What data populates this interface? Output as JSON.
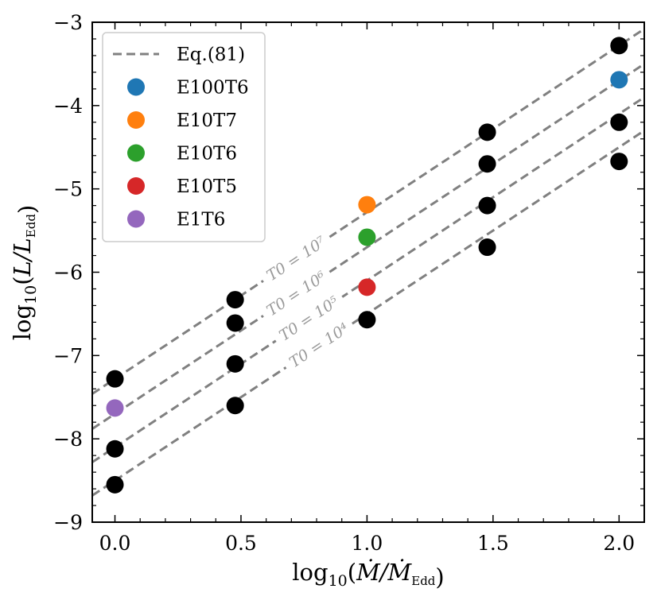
{
  "chart_data": {
    "type": "scatter",
    "xlabel": "log10(Ṁ/ṀEdd)",
    "ylabel": "log10(L/LEdd)",
    "xlim": [
      -0.09,
      2.1
    ],
    "ylim": [
      -9,
      -3
    ],
    "xticks": [
      0.0,
      0.5,
      1.0,
      1.5,
      2.0
    ],
    "xtick_labels": [
      "0.0",
      "0.5",
      "1.0",
      "1.5",
      "2.0"
    ],
    "yticks": [
      -9,
      -8,
      -7,
      -6,
      -5,
      -4,
      -3
    ],
    "ytick_labels": [
      "−9",
      "−8",
      "−7",
      "−6",
      "−5",
      "−4",
      "−3"
    ],
    "grid": false,
    "legend_position": "top-left",
    "lines": [
      {
        "name": "Eq.(81)",
        "label": "T0 = 10^7",
        "slope": 2.0,
        "intercept": -7.28,
        "color": "#808080",
        "style": "dashed",
        "label_x": 0.72
      },
      {
        "name": "Eq.(81)",
        "label": "T0 = 10^6",
        "slope": 2.0,
        "intercept": -7.7,
        "color": "#808080",
        "style": "dashed",
        "label_x": 0.72
      },
      {
        "name": "Eq.(81)",
        "label": "T0 = 10^5",
        "slope": 2.0,
        "intercept": -8.1,
        "color": "#808080",
        "style": "dashed",
        "label_x": 0.77
      },
      {
        "name": "Eq.(81)",
        "label": "T0 = 10^4",
        "slope": 2.0,
        "intercept": -8.5,
        "color": "#808080",
        "style": "dashed",
        "label_x": 0.81
      }
    ],
    "series": [
      {
        "color": "#000000",
        "points": [
          [
            0.0,
            -7.28
          ],
          [
            0.0,
            -8.12
          ],
          [
            0.0,
            -8.55
          ],
          [
            0.477,
            -6.33
          ],
          [
            0.477,
            -6.61
          ],
          [
            0.477,
            -7.1
          ],
          [
            0.477,
            -7.6
          ],
          [
            1.0,
            -6.57
          ],
          [
            1.477,
            -4.32
          ],
          [
            1.477,
            -4.7
          ],
          [
            1.477,
            -5.2
          ],
          [
            1.477,
            -5.7
          ],
          [
            2.0,
            -3.28
          ],
          [
            2.0,
            -4.2
          ],
          [
            2.0,
            -4.67
          ]
        ]
      },
      {
        "name": "E100T6",
        "color": "#1f77b4",
        "points": [
          [
            2.0,
            -3.69
          ]
        ]
      },
      {
        "name": "E10T7",
        "color": "#ff7f0e",
        "points": [
          [
            1.0,
            -5.19
          ]
        ]
      },
      {
        "name": "E10T6",
        "color": "#2ca02c",
        "points": [
          [
            1.0,
            -5.58
          ]
        ]
      },
      {
        "name": "E10T5",
        "color": "#d62728",
        "points": [
          [
            1.0,
            -6.18
          ]
        ]
      },
      {
        "name": "E1T6",
        "color": "#9467bd",
        "points": [
          [
            0.0,
            -7.63
          ]
        ]
      }
    ],
    "legend": [
      {
        "label": "Eq.(81)",
        "kind": "line",
        "color": "#808080"
      },
      {
        "label": "E100T6",
        "kind": "marker",
        "color": "#1f77b4"
      },
      {
        "label": "E10T7",
        "kind": "marker",
        "color": "#ff7f0e"
      },
      {
        "label": "E10T6",
        "kind": "marker",
        "color": "#2ca02c"
      },
      {
        "label": "E10T5",
        "kind": "marker",
        "color": "#d62728"
      },
      {
        "label": "E1T6",
        "kind": "marker",
        "color": "#9467bd"
      }
    ]
  }
}
